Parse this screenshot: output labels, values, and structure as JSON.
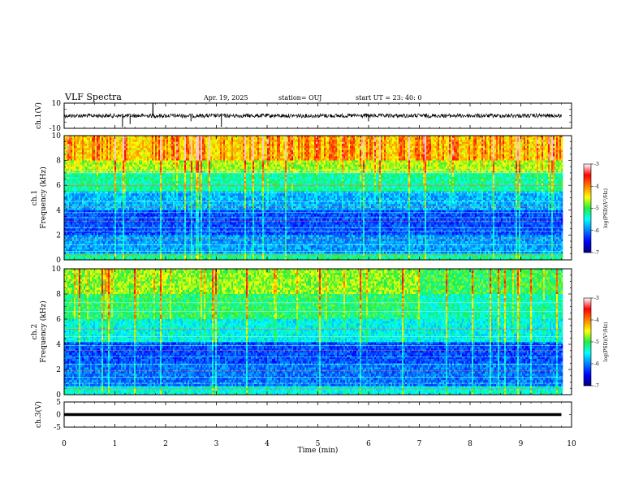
{
  "header": {
    "title": "VLF Spectra",
    "date": "Apr. 19, 2025",
    "station": "station= OUJ",
    "start": "start  UT  =    23: 40: 0"
  },
  "chart_data": [
    {
      "type": "line",
      "panel": "ch1-waveform",
      "ylabel": "ch.1(V)",
      "ylim": [
        -10,
        10
      ],
      "y_ticks": [
        10,
        -10
      ],
      "xlim": [
        0,
        10
      ],
      "baseline": 0,
      "series": [
        {
          "values_description_free": true,
          "x": [
            0,
            1.05,
            1.3,
            1.75,
            2.5,
            3.1,
            3.2,
            4.9,
            6.0,
            6.7,
            7.5,
            8.15,
            8.45,
            9.0,
            9.8
          ],
          "y": [
            0,
            0,
            -3,
            2,
            -2,
            -4,
            1,
            0,
            -2,
            1,
            0,
            1,
            -1,
            0,
            0
          ]
        }
      ],
      "color": "#000000"
    },
    {
      "type": "heatmap",
      "panel": "ch1-spectrogram",
      "ylabel": "ch.1\nFrequency (kHz)",
      "ylabel_top": "ch.1",
      "ylabel_bottom": "Frequency (kHz)",
      "ylim": [
        0,
        10
      ],
      "y_ticks": [
        "0",
        "2",
        "4",
        "6",
        "8",
        "10"
      ],
      "xlim": [
        0,
        10
      ],
      "data_xmax": 9.8,
      "colorbar": {
        "title": "log(PSD)(V²/Hz)",
        "range": [
          -7,
          -3
        ],
        "ticks": [
          "-3",
          "-4",
          "-5",
          "-6",
          "-7"
        ]
      }
    },
    {
      "type": "heatmap",
      "panel": "ch2-spectrogram",
      "ylabel_top": "ch.2",
      "ylabel_bottom": "Frequency (kHz)",
      "ylim": [
        0,
        10
      ],
      "y_ticks": [
        "0",
        "2",
        "4",
        "6",
        "8",
        "10"
      ],
      "xlim": [
        0,
        10
      ],
      "data_xmax": 9.8,
      "colorbar": {
        "title": "log(PSD)(V²/Hz)",
        "range": [
          -7,
          -3
        ],
        "ticks": [
          "-3",
          "-4",
          "-5",
          "-6",
          "-7"
        ]
      }
    },
    {
      "type": "line",
      "panel": "ch3-waveform",
      "ylabel": "ch.3(V)",
      "ylim": [
        -5,
        5
      ],
      "y_ticks": [
        "5",
        "0",
        "-5"
      ],
      "xlim": [
        0,
        10
      ],
      "series": [
        {
          "x": [
            0,
            9.8
          ],
          "y": [
            0,
            0
          ]
        }
      ],
      "color": "#000000",
      "xlabel": "Time (min)",
      "x_ticks": [
        "0",
        "1",
        "2",
        "3",
        "4",
        "5",
        "6",
        "7",
        "8",
        "9",
        "10"
      ]
    }
  ]
}
